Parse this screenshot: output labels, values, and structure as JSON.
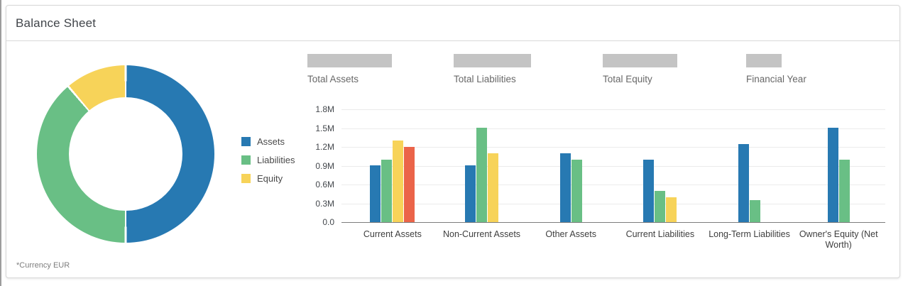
{
  "page": {
    "title": "Balance Sheet",
    "footnote": "*Currency EUR"
  },
  "colors": {
    "assets": "#2779b2",
    "liabilities": "#69bf85",
    "equity": "#f7d359",
    "extra_red": "#eb6449",
    "kpi_placeholder": "#c4c4c4"
  },
  "kpis": [
    {
      "label": "Total Assets"
    },
    {
      "label": "Total Liabilities"
    },
    {
      "label": "Total Equity"
    },
    {
      "label": "Financial Year"
    }
  ],
  "legend": [
    {
      "label": "Assets",
      "color": "#2779b2"
    },
    {
      "label": "Liabilities",
      "color": "#69bf85"
    },
    {
      "label": "Equity",
      "color": "#f7d359"
    }
  ],
  "chart_data": [
    {
      "type": "pie",
      "variant": "donut",
      "legend_position": "right",
      "slices": [
        {
          "label": "Assets",
          "percent": 50.0,
          "color": "#2779b2"
        },
        {
          "label": "Liabilities",
          "percent": 38.8,
          "color": "#69bf85"
        },
        {
          "label": "Equity",
          "percent": 11.2,
          "color": "#f7d359"
        }
      ]
    },
    {
      "type": "bar",
      "unit": "M EUR",
      "ylim": [
        0,
        1.8
      ],
      "y_ticks": [
        "1.8M",
        "1.5M",
        "1.2M",
        "0.9M",
        "0.6M",
        "0.3M",
        "0.0"
      ],
      "grid": "horizontal",
      "categories": [
        "Current Assets",
        "Non-Current Assets",
        "Other Assets",
        "Current Liabilities",
        "Long-Term Liabilities",
        "Owner's Equity (Net Worth)"
      ],
      "series": [
        {
          "name": "Assets",
          "color": "#2779b2",
          "values": [
            0.9,
            0.9,
            1.1,
            1.0,
            1.25,
            1.5
          ]
        },
        {
          "name": "Liabilities",
          "color": "#69bf85",
          "values": [
            1.0,
            1.5,
            1.0,
            0.5,
            0.35,
            1.0
          ]
        },
        {
          "name": "Equity",
          "color": "#f7d359",
          "values": [
            1.3,
            1.1,
            null,
            0.4,
            null,
            null
          ]
        },
        {
          "name": "",
          "color": "#eb6449",
          "values": [
            1.2,
            null,
            null,
            null,
            null,
            null
          ]
        }
      ]
    }
  ]
}
